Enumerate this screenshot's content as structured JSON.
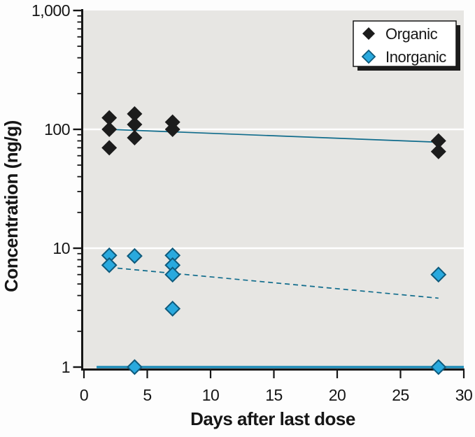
{
  "chart_data": {
    "type": "scatter",
    "title": "",
    "xlabel": "Days after last dose",
    "ylabel": "Concentration (ng/g)",
    "x_scale": "linear",
    "y_scale": "log10",
    "xlim": [
      0,
      30
    ],
    "ylim": [
      1,
      1000
    ],
    "x_ticks": [
      0,
      5,
      10,
      15,
      20,
      25,
      30
    ],
    "y_major_ticks": [
      {
        "value": 1,
        "label": "1"
      },
      {
        "value": 10,
        "label": "10"
      },
      {
        "value": 100,
        "label": "100"
      },
      {
        "value": 1000,
        "label": "1,000"
      }
    ],
    "y_minor_tick_decades": [
      1,
      10,
      100
    ],
    "y_gridlines": [
      10,
      100
    ],
    "grid": "white-horizontal-major",
    "legend_position": "top-right",
    "series": [
      {
        "name": "Organic",
        "marker": "diamond",
        "color": "#1c1c1c",
        "stroke": "#1c1c1c",
        "points": [
          [
            2,
            125
          ],
          [
            2,
            100
          ],
          [
            2,
            70
          ],
          [
            4,
            135
          ],
          [
            4,
            110
          ],
          [
            4,
            85
          ],
          [
            7,
            115
          ],
          [
            7,
            100
          ],
          [
            28,
            80
          ],
          [
            28,
            65
          ]
        ],
        "trend": {
          "style": "solid",
          "x1": 2,
          "y1": 100,
          "x2": 28,
          "y2": 78
        }
      },
      {
        "name": "Inorganic",
        "marker": "diamond",
        "color": "#29a9de",
        "stroke": "#0e5a7c",
        "points": [
          [
            2,
            8.7
          ],
          [
            2,
            7.2
          ],
          [
            4,
            8.6
          ],
          [
            4,
            1.0
          ],
          [
            7,
            8.7
          ],
          [
            7,
            7.2
          ],
          [
            7,
            6.0
          ],
          [
            7,
            3.1
          ],
          [
            28,
            6.0
          ],
          [
            28,
            1.0
          ]
        ],
        "trend": {
          "style": "dashed",
          "x1": 2,
          "y1": 6.9,
          "x2": 28,
          "y2": 3.8
        },
        "baseline": {
          "y": 1,
          "x1": 1,
          "x2": 30
        }
      }
    ],
    "colors": {
      "plot_bg": "#e7e6e3",
      "gridline": "#ffffff",
      "axis": "#161616",
      "trend_line": "#106c8c",
      "baseline_line": "#1486b4",
      "legend_bg": "#ffffff",
      "legend_border": "#161616",
      "legend_shadow": "#1c1c1c"
    }
  }
}
